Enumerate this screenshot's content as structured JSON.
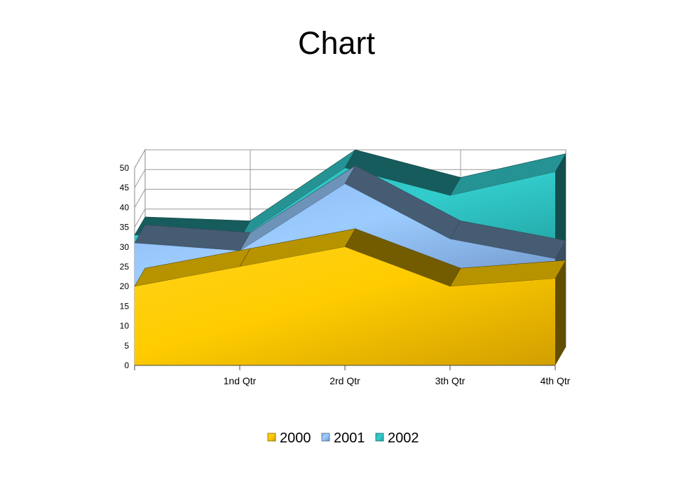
{
  "page_title": "Chart",
  "chart_data": {
    "type": "area",
    "stacked": true,
    "three_d": true,
    "categories": [
      "",
      "1nd Qtr",
      "2rd Qtr",
      "3th Qtr",
      "4th Qtr"
    ],
    "series": [
      {
        "name": "2000",
        "values": [
          20,
          25,
          30,
          20,
          22
        ],
        "color": "#ffcc00"
      },
      {
        "name": "2001",
        "values": [
          11,
          4,
          16,
          12,
          5
        ],
        "color": "#99ccff"
      },
      {
        "name": "2002",
        "values": [
          2,
          3,
          4,
          11,
          22
        ],
        "color": "#33cccc"
      }
    ],
    "ylim": [
      0,
      50
    ],
    "yticks": [
      0,
      5,
      10,
      15,
      20,
      25,
      30,
      35,
      40,
      45,
      50
    ],
    "grid": true,
    "legend": "bottom",
    "title": "Chart",
    "xlabel": "",
    "ylabel": ""
  }
}
